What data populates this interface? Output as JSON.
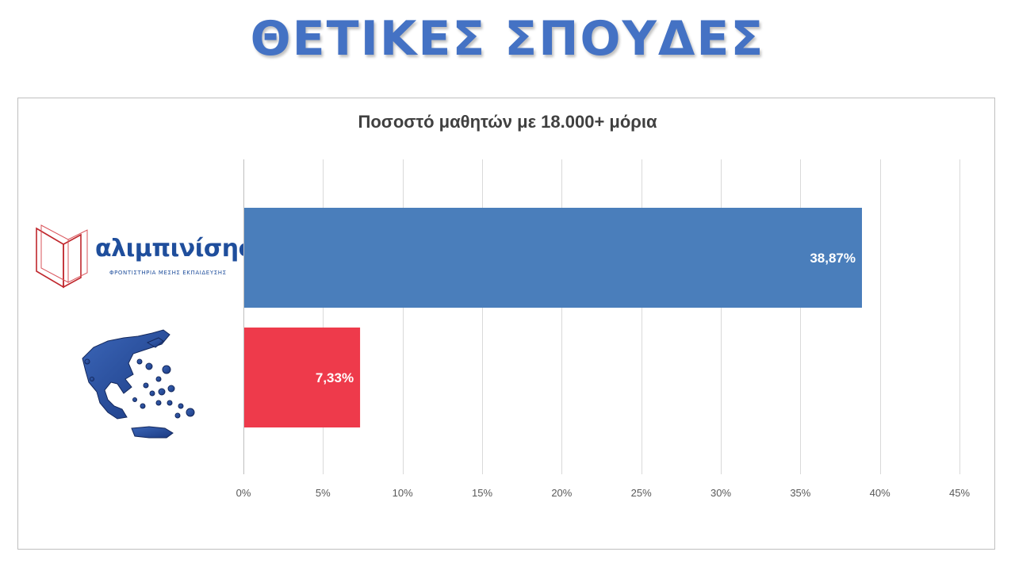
{
  "page": {
    "title": "ΘΕΤΙΚΕΣ ΣΠΟΥΔΕΣ"
  },
  "logo": {
    "name": "αλιμπινίσης",
    "tagline": "ΦΡΟΝΤΙΣΤΗΡΙΑ ΜΕΣΗΣ ΕΚΠΑΙΔΕΥΣΗΣ"
  },
  "chart_data": {
    "type": "bar",
    "orientation": "horizontal",
    "title": "Ποσοστό μαθητών με 18.000+ μόρια",
    "categories": [
      "αλιμπινίσης",
      "Ελλάδα"
    ],
    "category_icons": [
      "alimpinisis-logo",
      "greece-map-icon"
    ],
    "values": [
      38.87,
      7.33
    ],
    "value_labels": [
      "38,87%",
      "7,33%"
    ],
    "colors": [
      "#4a7ebb",
      "#ee3a4b"
    ],
    "xlim": [
      0,
      45
    ],
    "xticks": [
      0,
      5,
      10,
      15,
      20,
      25,
      30,
      35,
      40,
      45
    ],
    "xtick_labels": [
      "0%",
      "5%",
      "10%",
      "15%",
      "20%",
      "25%",
      "30%",
      "35%",
      "40%",
      "45%"
    ],
    "xlabel": "",
    "ylabel": "",
    "grid": "vertical"
  }
}
